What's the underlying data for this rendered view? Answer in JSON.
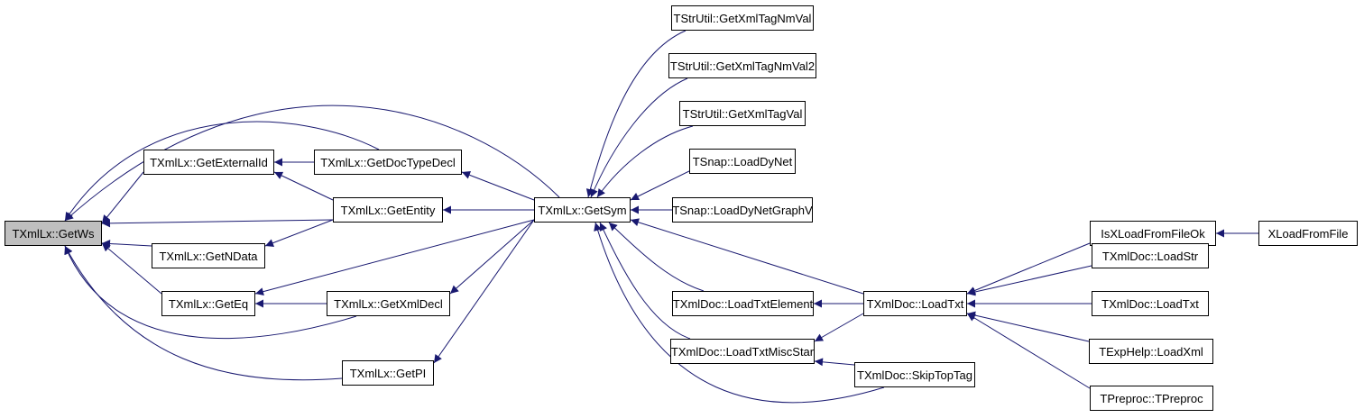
{
  "graph": {
    "edge_color": "#191970",
    "root_fill": "#bfbfbf",
    "nodes": [
      {
        "id": "getws",
        "label": "TXmlLx::GetWs",
        "root": true
      },
      {
        "id": "getextid",
        "label": "TXmlLx::GetExternalId"
      },
      {
        "id": "getdoctype",
        "label": "TXmlLx::GetDocTypeDecl"
      },
      {
        "id": "getentity",
        "label": "TXmlLx::GetEntity"
      },
      {
        "id": "getndata",
        "label": "TXmlLx::GetNData"
      },
      {
        "id": "geteq",
        "label": "TXmlLx::GetEq"
      },
      {
        "id": "getxmldecl",
        "label": "TXmlLx::GetXmlDecl"
      },
      {
        "id": "getpi",
        "label": "TXmlLx::GetPI"
      },
      {
        "id": "getsym",
        "label": "TXmlLx::GetSym"
      },
      {
        "id": "nmval",
        "label": "TStrUtil::GetXmlTagNmVal"
      },
      {
        "id": "nmval2",
        "label": "TStrUtil::GetXmlTagNmVal2"
      },
      {
        "id": "tagval",
        "label": "TStrUtil::GetXmlTagVal"
      },
      {
        "id": "loaddynet",
        "label": "TSnap::LoadDyNet"
      },
      {
        "id": "loaddynetgv",
        "label": "TSnap::LoadDyNetGraphV"
      },
      {
        "id": "loadtxtel",
        "label": "TXmlDoc::LoadTxtElement"
      },
      {
        "id": "loadtxtmisc",
        "label": "TXmlDoc::LoadTxtMiscStar"
      },
      {
        "id": "loadtxt",
        "label": "TXmlDoc::LoadTxt"
      },
      {
        "id": "skiptop",
        "label": "TXmlDoc::SkipTopTag"
      },
      {
        "id": "isxload",
        "label": "IsXLoadFromFileOk"
      },
      {
        "id": "xload",
        "label": "XLoadFromFile"
      },
      {
        "id": "loadstr",
        "label": "TXmlDoc::LoadStr"
      },
      {
        "id": "loadtxt2",
        "label": "TXmlDoc::LoadTxt"
      },
      {
        "id": "loadxml",
        "label": "TExpHelp::LoadXml"
      },
      {
        "id": "tpreproc",
        "label": "TPreproc::TPreproc"
      }
    ],
    "edges": [
      [
        "getextid",
        "getws"
      ],
      [
        "getdoctype",
        "getws"
      ],
      [
        "getentity",
        "getws"
      ],
      [
        "getndata",
        "getws"
      ],
      [
        "geteq",
        "getws"
      ],
      [
        "getxmldecl",
        "getws"
      ],
      [
        "getpi",
        "getws"
      ],
      [
        "getsym",
        "getws"
      ],
      [
        "getdoctype",
        "getextid"
      ],
      [
        "getentity",
        "getextid"
      ],
      [
        "getentity",
        "getndata"
      ],
      [
        "getxmldecl",
        "geteq"
      ],
      [
        "getsym",
        "getdoctype"
      ],
      [
        "getsym",
        "getentity"
      ],
      [
        "getsym",
        "geteq"
      ],
      [
        "getsym",
        "getxmldecl"
      ],
      [
        "getsym",
        "getpi"
      ],
      [
        "nmval",
        "getsym"
      ],
      [
        "nmval2",
        "getsym"
      ],
      [
        "tagval",
        "getsym"
      ],
      [
        "loaddynet",
        "getsym"
      ],
      [
        "loaddynetgv",
        "getsym"
      ],
      [
        "loadtxtel",
        "getsym"
      ],
      [
        "loadtxtmisc",
        "getsym"
      ],
      [
        "loadtxt",
        "getsym"
      ],
      [
        "skiptop",
        "getsym"
      ],
      [
        "loadtxt",
        "loadtxtel"
      ],
      [
        "loadtxt",
        "loadtxtmisc"
      ],
      [
        "skiptop",
        "loadtxtmisc"
      ],
      [
        "isxload",
        "loadtxt"
      ],
      [
        "loadstr",
        "loadtxt"
      ],
      [
        "loadtxt2",
        "loadtxt"
      ],
      [
        "loadxml",
        "loadtxt"
      ],
      [
        "tpreproc",
        "loadtxt"
      ],
      [
        "xload",
        "isxload"
      ]
    ]
  }
}
